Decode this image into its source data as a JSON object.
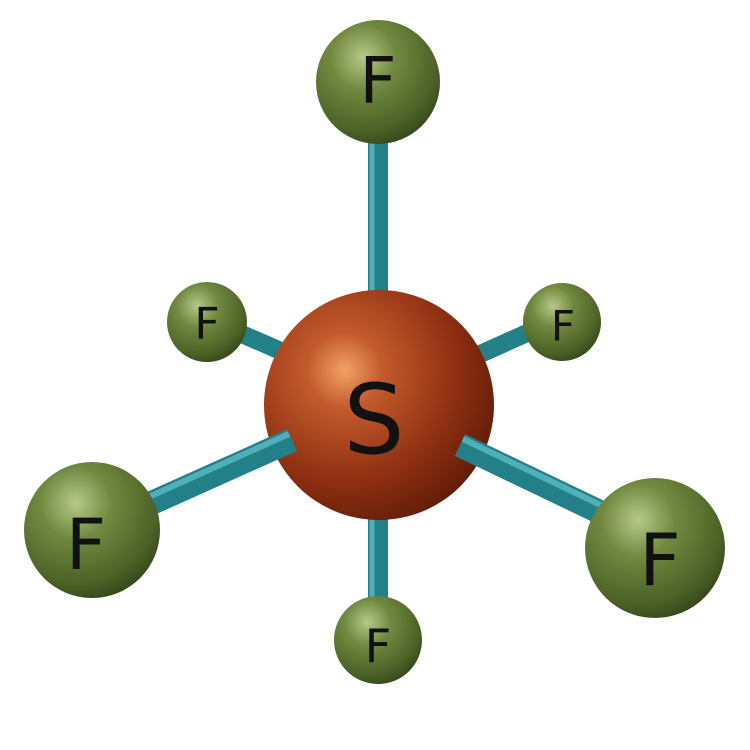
{
  "molecule": {
    "central_atom": {
      "symbol": "S",
      "color": "#8e2f12"
    },
    "ligands": [
      {
        "id": "top",
        "symbol": "F"
      },
      {
        "id": "upper-left",
        "symbol": "F"
      },
      {
        "id": "upper-right",
        "symbol": "F"
      },
      {
        "id": "lower-left",
        "symbol": "F"
      },
      {
        "id": "lower-right",
        "symbol": "F"
      },
      {
        "id": "bottom",
        "symbol": "F"
      }
    ],
    "ligand_color": "#5f7a35",
    "bond_color": "#237f88",
    "background_color": "#ffffff"
  }
}
